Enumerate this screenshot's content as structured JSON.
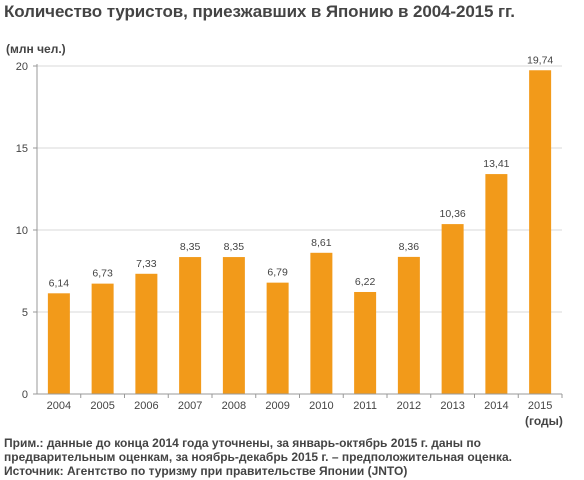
{
  "title": "Количество туристов, приезжавших в Японию в 2004-2015 гг.",
  "unit_label": "(млн чел.)",
  "years_label": "(годы)",
  "notes": {
    "line1": "Прим.: данные до конца 2014 года уточнены, за январь-октябрь 2015 г. даны по",
    "line2": "предварительным оценкам, за ноябрь-декабрь 2015 г. – предположительная оценка.",
    "line3": "Источник: Агентство по туризму при правительстве Японии (JNTO)"
  },
  "colors": {
    "bar": "#f29a1a",
    "grid": "#d9d9d9",
    "axis": "#999999",
    "text": "#444444"
  },
  "chart_data": {
    "type": "bar",
    "title": "Количество туристов, приезжавших в Японию в 2004-2015 гг.",
    "ylabel": "(млн чел.)",
    "xlabel": "(годы)",
    "ylim": [
      0,
      20
    ],
    "yticks": [
      "0",
      "5",
      "10",
      "15",
      "20"
    ],
    "grid": true,
    "categories": [
      "2004",
      "2005",
      "2006",
      "2007",
      "2008",
      "2009",
      "2010",
      "2011",
      "2012",
      "2013",
      "2014",
      "2015"
    ],
    "values": [
      6.14,
      6.73,
      7.33,
      8.35,
      8.35,
      6.79,
      8.61,
      6.22,
      8.36,
      10.36,
      13.41,
      19.74
    ],
    "value_labels": [
      "6,14",
      "6,73",
      "7,33",
      "8,35",
      "8,35",
      "6,79",
      "8,61",
      "6,22",
      "8,36",
      "10,36",
      "13,41",
      "19,74"
    ]
  }
}
